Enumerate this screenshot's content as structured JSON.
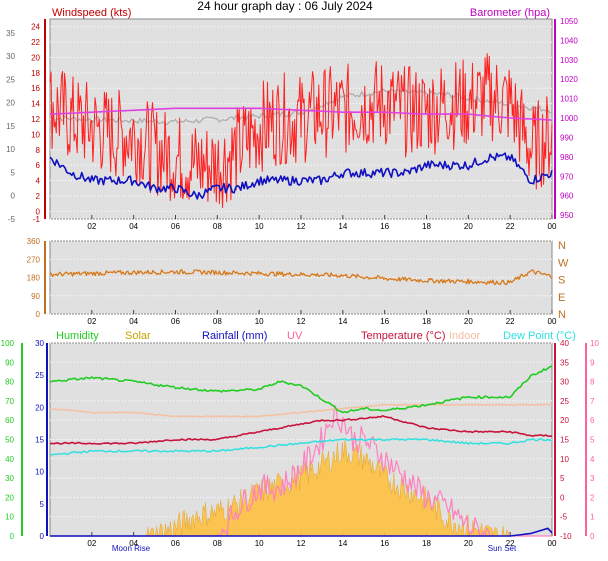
{
  "title": "24 hour graph day : 06 July 2024",
  "colors": {
    "windspeed": "#ff0000",
    "gust": "#ff2020",
    "direction": "#d87818",
    "barometer": "#e040e0",
    "baro_grey": "#b0b0b0",
    "humidity": "#22cc22",
    "solar": "#ffc040",
    "rainfall": "#1010c0",
    "uv": "#ff80c0",
    "temperature": "#c8143c",
    "indoor": "#f5bfa0",
    "dewpoint": "#30e0e0",
    "panel_bg": "#e0e0e0"
  },
  "chart_data": [
    {
      "type": "line",
      "panel": "wind-barometer",
      "x_ticks": [
        "02",
        "04",
        "06",
        "08",
        "10",
        "12",
        "14",
        "16",
        "18",
        "20",
        "22",
        "00"
      ],
      "left_axis": {
        "label": "Windspeed (kts)",
        "ticks": [
          "-1",
          "0",
          "2",
          "4",
          "6",
          "8",
          "10",
          "12",
          "14",
          "16",
          "18",
          "20",
          "22",
          "24"
        ],
        "ylim": [
          -1,
          25
        ]
      },
      "outer_left_axis": {
        "ticks": [
          "-5",
          "0",
          "5",
          "10",
          "15",
          "20",
          "25",
          "30",
          "35"
        ],
        "ylim": [
          -5,
          38
        ]
      },
      "right_axis": {
        "label": "Barometer (hpa)",
        "ticks": [
          "950",
          "960",
          "970",
          "980",
          "990",
          "1000",
          "1010",
          "1020",
          "1030",
          "1040",
          "1050"
        ],
        "ylim": [
          948,
          1051
        ]
      },
      "series": [
        {
          "name": "Windspeed (kts)",
          "axis": "left",
          "x": [
            0,
            1,
            2,
            3,
            4,
            5,
            6,
            7,
            8,
            9,
            10,
            11,
            12,
            13,
            14,
            15,
            16,
            17,
            18,
            19,
            20,
            21,
            22,
            23,
            24
          ],
          "values": [
            7,
            5,
            4,
            4,
            4,
            3,
            3,
            2,
            3,
            3,
            4,
            4,
            4,
            4,
            5,
            5,
            5,
            5,
            6,
            6,
            6,
            7,
            7,
            4,
            5
          ]
        },
        {
          "name": "Gust",
          "axis": "left",
          "x": [
            0,
            1,
            2,
            3,
            4,
            5,
            6,
            7,
            8,
            9,
            10,
            11,
            12,
            13,
            14,
            15,
            16,
            17,
            18,
            19,
            20,
            21,
            22,
            23,
            24
          ],
          "values": [
            14,
            12,
            11,
            10,
            10,
            8,
            7,
            6,
            6,
            8,
            11,
            12,
            12,
            13,
            13,
            14,
            14,
            13,
            13,
            14,
            14,
            15,
            14,
            8,
            10
          ]
        },
        {
          "name": "Barometer (hpa)",
          "axis": "right",
          "x": [
            0,
            2,
            4,
            6,
            8,
            10,
            12,
            14,
            16,
            18,
            20,
            22,
            24
          ],
          "values": [
            1002,
            1003,
            1004,
            1005,
            1005,
            1005,
            1004,
            1003,
            1003,
            1002,
            1002,
            1000,
            999
          ]
        }
      ]
    },
    {
      "type": "line",
      "panel": "direction",
      "x_ticks": [
        "02",
        "04",
        "06",
        "08",
        "10",
        "12",
        "14",
        "16",
        "18",
        "20",
        "22",
        "00"
      ],
      "left_axis": {
        "ticks": [
          "0",
          "90",
          "180",
          "270",
          "360"
        ],
        "ylim": [
          0,
          360
        ]
      },
      "right_axis": {
        "ticks": [
          "N",
          "W",
          "S",
          "E",
          "N"
        ]
      },
      "series": [
        {
          "name": "Wind direction",
          "x": [
            0,
            2,
            4,
            6,
            8,
            10,
            12,
            14,
            16,
            18,
            20,
            22,
            23,
            24
          ],
          "values": [
            195,
            200,
            205,
            208,
            205,
            200,
            195,
            190,
            175,
            165,
            160,
            155,
            210,
            185
          ]
        }
      ]
    },
    {
      "type": "line",
      "panel": "humidity-temperature",
      "x_ticks": [
        "02",
        "04",
        "06",
        "08",
        "10",
        "12",
        "14",
        "16",
        "18",
        "20",
        "22",
        "00"
      ],
      "annotations": [
        "Moon Rise",
        "Sun Set"
      ],
      "legend": [
        "Humidity",
        "Solar",
        "Rainfall (mm)",
        "UV",
        "Temperature (°C)",
        "Indoor",
        "Dew Point (°C)"
      ],
      "axes": {
        "humidity": {
          "ticks": [
            "0",
            "10",
            "20",
            "30",
            "40",
            "50",
            "60",
            "70",
            "80",
            "90",
            "100"
          ],
          "ylim": [
            0,
            100
          ]
        },
        "rainfall": {
          "ticks": [
            "0",
            "5",
            "10",
            "15",
            "20",
            "25",
            "30"
          ],
          "ylim": [
            0,
            30
          ]
        },
        "temperature": {
          "ticks": [
            "-10",
            "-5",
            "0",
            "5",
            "10",
            "15",
            "20",
            "25",
            "30",
            "35",
            "40"
          ],
          "ylim": [
            -10,
            40
          ]
        },
        "uv": {
          "ticks": [
            "0",
            "1",
            "2",
            "3",
            "4",
            "5",
            "6",
            "7",
            "8",
            "9",
            "10"
          ],
          "ylim": [
            0,
            10
          ]
        }
      },
      "series": [
        {
          "name": "Humidity",
          "axis": "humidity",
          "x": [
            0,
            2,
            4,
            6,
            8,
            10,
            11,
            12,
            14,
            15,
            16,
            18,
            20,
            22,
            23,
            24
          ],
          "values": [
            80,
            82,
            80,
            77,
            75,
            76,
            80,
            78,
            64,
            66,
            65,
            68,
            72,
            72,
            83,
            88
          ]
        },
        {
          "name": "Solar",
          "axis": "temperature",
          "x": [
            0,
            4.5,
            6,
            7,
            8,
            9,
            10,
            11,
            12,
            13,
            14,
            15,
            16,
            17,
            18,
            19,
            20,
            21,
            22
          ],
          "values": [
            -10,
            -10,
            -7,
            -4,
            -3,
            -1,
            2,
            4,
            6,
            9,
            13,
            11,
            6,
            3,
            0,
            -5,
            -7,
            -9,
            -10
          ]
        },
        {
          "name": "Rainfall (mm)",
          "axis": "rainfall",
          "x": [
            0,
            22,
            23,
            23.8,
            24
          ],
          "values": [
            0,
            0,
            0.4,
            1.2,
            0.5
          ]
        },
        {
          "name": "UV",
          "axis": "uv",
          "x": [
            0,
            8,
            9,
            10,
            11,
            12,
            13,
            13.5,
            14,
            14.5,
            15,
            16,
            17,
            18,
            19,
            20,
            21,
            24
          ],
          "values": [
            0,
            0,
            1.5,
            2.5,
            2.5,
            3.5,
            5,
            6.3,
            6,
            5,
            5,
            4,
            3,
            2,
            1.5,
            0.5,
            0,
            0
          ]
        },
        {
          "name": "Temperature (°C)",
          "axis": "temperature",
          "x": [
            0,
            2,
            4,
            6,
            8,
            10,
            12,
            13,
            14,
            16,
            18,
            20,
            22,
            23,
            24
          ],
          "values": [
            14,
            14,
            14,
            15,
            15,
            17,
            19,
            20,
            20,
            21,
            18,
            17,
            17,
            16,
            16
          ]
        },
        {
          "name": "Indoor",
          "axis": "temperature",
          "x": [
            0,
            2,
            4,
            6,
            8,
            10,
            12,
            14,
            16,
            18,
            20,
            22,
            24
          ],
          "values": [
            23,
            22,
            22,
            21,
            21,
            21,
            22,
            23,
            24,
            24,
            24,
            24,
            24
          ]
        },
        {
          "name": "Dew Point (°C)",
          "axis": "temperature",
          "x": [
            0,
            2,
            4,
            6,
            8,
            10,
            12,
            14,
            16,
            18,
            20,
            22,
            23,
            24
          ],
          "values": [
            11,
            12,
            12,
            12,
            12,
            13,
            14,
            15,
            15,
            15,
            14,
            14,
            15,
            15
          ]
        }
      ]
    }
  ]
}
